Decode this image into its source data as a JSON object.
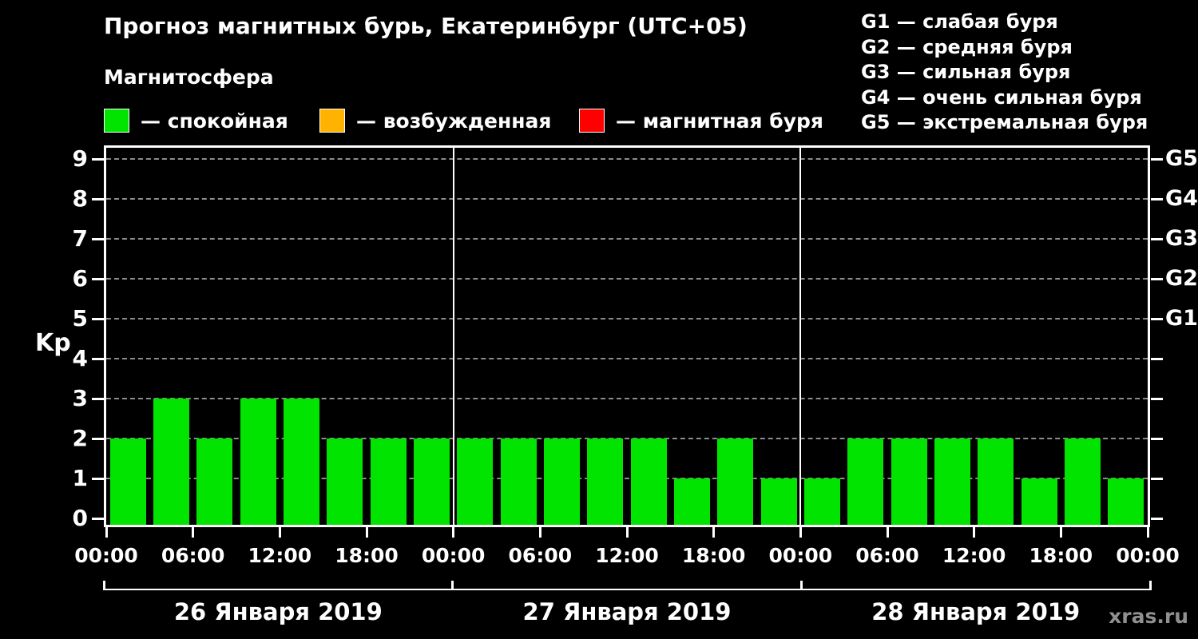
{
  "header": {
    "title": "Прогноз магнитных бурь, Екатеринбург (UTC+05)",
    "subtitle": "Магнитосфера",
    "legend": [
      {
        "label": "— спокойная",
        "color": "#00e400"
      },
      {
        "label": "— возбужденная",
        "color": "#ffb300"
      },
      {
        "label": "— магнитная буря",
        "color": "#ff0000"
      }
    ],
    "g_legend": [
      "G1 — слабая буря",
      "G2 — средняя буря",
      "G3 — сильная буря",
      "G4 — очень сильная буря",
      "G5 — экстремальная буря"
    ]
  },
  "chart_data": {
    "type": "bar",
    "title": "Прогноз магнитных бурь, Екатеринбург (UTC+05)",
    "ylabel": "Kp",
    "ylim": [
      0,
      9
    ],
    "grid": "dashed horizontal lines at each Kp level",
    "bar_color": "#00e400",
    "interval_hours": 3,
    "y_ticks": [
      0,
      1,
      2,
      3,
      4,
      5,
      6,
      7,
      8,
      9
    ],
    "g_levels": [
      {
        "label": "G1",
        "level": 5
      },
      {
        "label": "G2",
        "level": 6
      },
      {
        "label": "G3",
        "level": 7
      },
      {
        "label": "G4",
        "level": 8
      },
      {
        "label": "G5",
        "level": 9
      }
    ],
    "x_tick_labels": [
      "00:00",
      "06:00",
      "12:00",
      "18:00",
      "00:00",
      "06:00",
      "12:00",
      "18:00",
      "00:00",
      "06:00",
      "12:00",
      "18:00",
      "00:00"
    ],
    "days": [
      {
        "date": "26 Января 2019",
        "values": [
          2,
          3,
          2,
          3,
          3,
          2,
          2,
          2
        ]
      },
      {
        "date": "27 Января 2019",
        "values": [
          2,
          2,
          2,
          2,
          2,
          1,
          2,
          1
        ]
      },
      {
        "date": "28 Января 2019",
        "values": [
          1,
          2,
          2,
          2,
          2,
          1,
          2,
          1
        ]
      }
    ]
  },
  "watermark": "xras.ru"
}
